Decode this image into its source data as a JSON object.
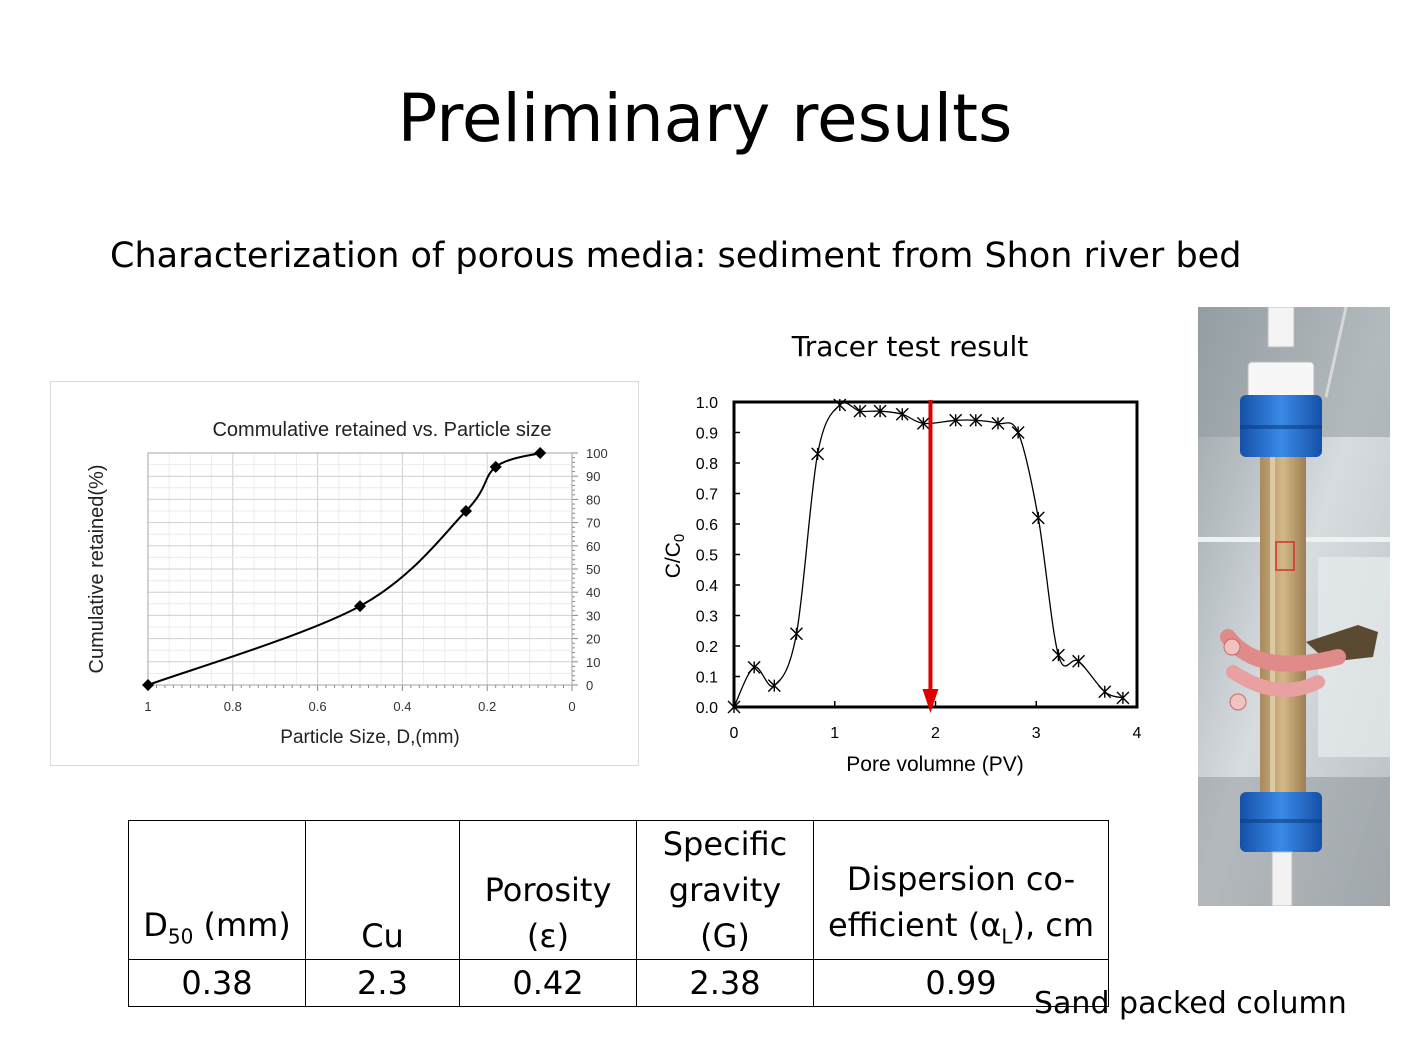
{
  "slide": {
    "title": "Preliminary results",
    "subtitle": "Characterization of porous media: sediment from Shon river bed",
    "photo_caption": "Sand packed column"
  },
  "chart_data": [
    {
      "type": "line",
      "title": "Commulative retained vs. Particle size",
      "xlabel": "Particle Size, D,(mm)",
      "ylabel": "Cumulative retained(%)",
      "xlim": [
        1,
        0
      ],
      "x_reversed": true,
      "ylim": [
        0,
        100
      ],
      "y_axis_side": "right",
      "grid": true,
      "xticks": [
        "1",
        "0.8",
        "0.6",
        "0.4",
        "0.2",
        "0"
      ],
      "yticks": [
        "0",
        "10",
        "20",
        "30",
        "40",
        "50",
        "60",
        "70",
        "80",
        "90",
        "100"
      ],
      "marker": "diamond",
      "x": [
        1,
        0.5,
        0.25,
        0.18,
        0.075
      ],
      "y": [
        0,
        34,
        75,
        94,
        100
      ]
    },
    {
      "type": "scatter",
      "title": "Tracer test result",
      "xlabel": "Pore volumne (PV)",
      "ylabel": "C/C0",
      "xlim": [
        0,
        4
      ],
      "ylim": [
        0,
        1
      ],
      "grid": false,
      "xticks": [
        "0",
        "1",
        "2",
        "3",
        "4"
      ],
      "yticks": [
        "0.0",
        "0.1",
        "0.2",
        "0.3",
        "0.4",
        "0.5",
        "0.6",
        "0.7",
        "0.8",
        "0.9",
        "1.0"
      ],
      "marker": "star",
      "x": [
        0,
        0.2,
        0.4,
        0.62,
        0.83,
        1.05,
        1.25,
        1.45,
        1.67,
        1.88,
        2.2,
        2.4,
        2.62,
        2.82,
        3.02,
        3.22,
        3.42,
        3.68,
        3.86
      ],
      "y": [
        0,
        0.13,
        0.07,
        0.24,
        0.83,
        0.99,
        0.97,
        0.97,
        0.96,
        0.93,
        0.94,
        0.94,
        0.93,
        0.9,
        0.62,
        0.17,
        0.15,
        0.05,
        0.03
      ],
      "annotation": {
        "x": 1.95,
        "color": "#e00000"
      }
    }
  ],
  "table": {
    "headers": [
      {
        "main": "D",
        "sub": "50",
        "rest": " (mm)"
      },
      {
        "line1": "",
        "line2": "Cu"
      },
      {
        "line1": "Porosity",
        "line2": "(ε)"
      },
      {
        "line1": "Specific",
        "line2": "gravity (G)"
      },
      {
        "line1": "Dispersion co-",
        "line2a": "efficient (α",
        "sub": "L",
        "line2b": "), cm"
      }
    ],
    "values": [
      "0.38",
      "2.3",
      "0.42",
      "2.38",
      "0.99"
    ]
  },
  "colors": {
    "arrow": "#e00000",
    "cap_blue": "#1f6fd0",
    "sand": "#c8ab7d",
    "tube_pink": "#e08a8a"
  }
}
